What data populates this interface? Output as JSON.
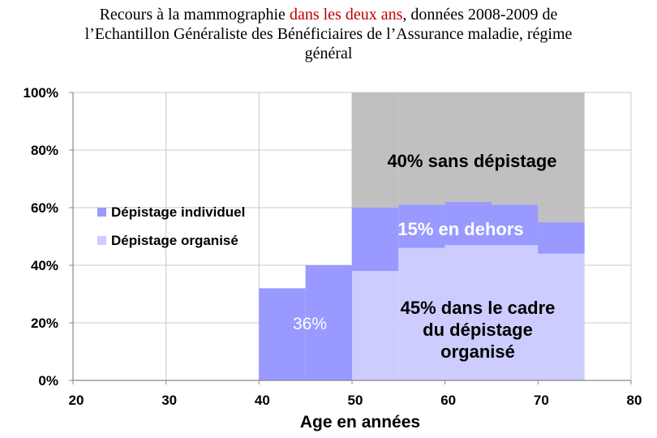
{
  "title": {
    "line1_a": "Recours à la mammographie ",
    "line1_highlight": "dans les deux ans",
    "line1_b": ", données 2008-2009 de",
    "line2": "l’Echantillon Généraliste des Bénéficiaires de l’Assurance maladie, régime",
    "line3": "général",
    "highlight_color": "#c00000"
  },
  "chart_data": {
    "type": "area",
    "xlabel": "Age en années",
    "ylabel": "",
    "xlim": [
      20,
      80
    ],
    "ylim": [
      0,
      100
    ],
    "x_ticks": [
      "20",
      "30",
      "40",
      "50",
      "60",
      "70",
      "80"
    ],
    "y_ticks": [
      "0%",
      "20%",
      "40%",
      "60%",
      "80%",
      "100%"
    ],
    "grid": true,
    "legend_position": "left-middle",
    "age_bins": [
      {
        "from": 40,
        "to": 45,
        "organise": 0,
        "individuel": 32,
        "sans": 0
      },
      {
        "from": 45,
        "to": 50,
        "organise": 0,
        "individuel": 40,
        "sans": 0
      },
      {
        "from": 50,
        "to": 55,
        "organise": 38,
        "individuel": 22,
        "sans": 40
      },
      {
        "from": 55,
        "to": 60,
        "organise": 46,
        "individuel": 15,
        "sans": 39
      },
      {
        "from": 60,
        "to": 65,
        "organise": 47,
        "individuel": 15,
        "sans": 38
      },
      {
        "from": 65,
        "to": 70,
        "organise": 47,
        "individuel": 14,
        "sans": 39
      },
      {
        "from": 70,
        "to": 75,
        "organise": 44,
        "individuel": 11,
        "sans": 45
      }
    ],
    "series": [
      {
        "name": "Dépistage individuel",
        "color": "#9999ff"
      },
      {
        "name": "Dépistage organisé",
        "color": "#ccccff"
      }
    ],
    "sans_color": "#c0c0c0",
    "annotations": {
      "sans": "40% sans dépistage",
      "dehors": "15% en dehors",
      "cadre_1": "45% dans le cadre",
      "cadre_2": "du dépistage",
      "cadre_3": "organisé",
      "pct36": "36%"
    }
  }
}
